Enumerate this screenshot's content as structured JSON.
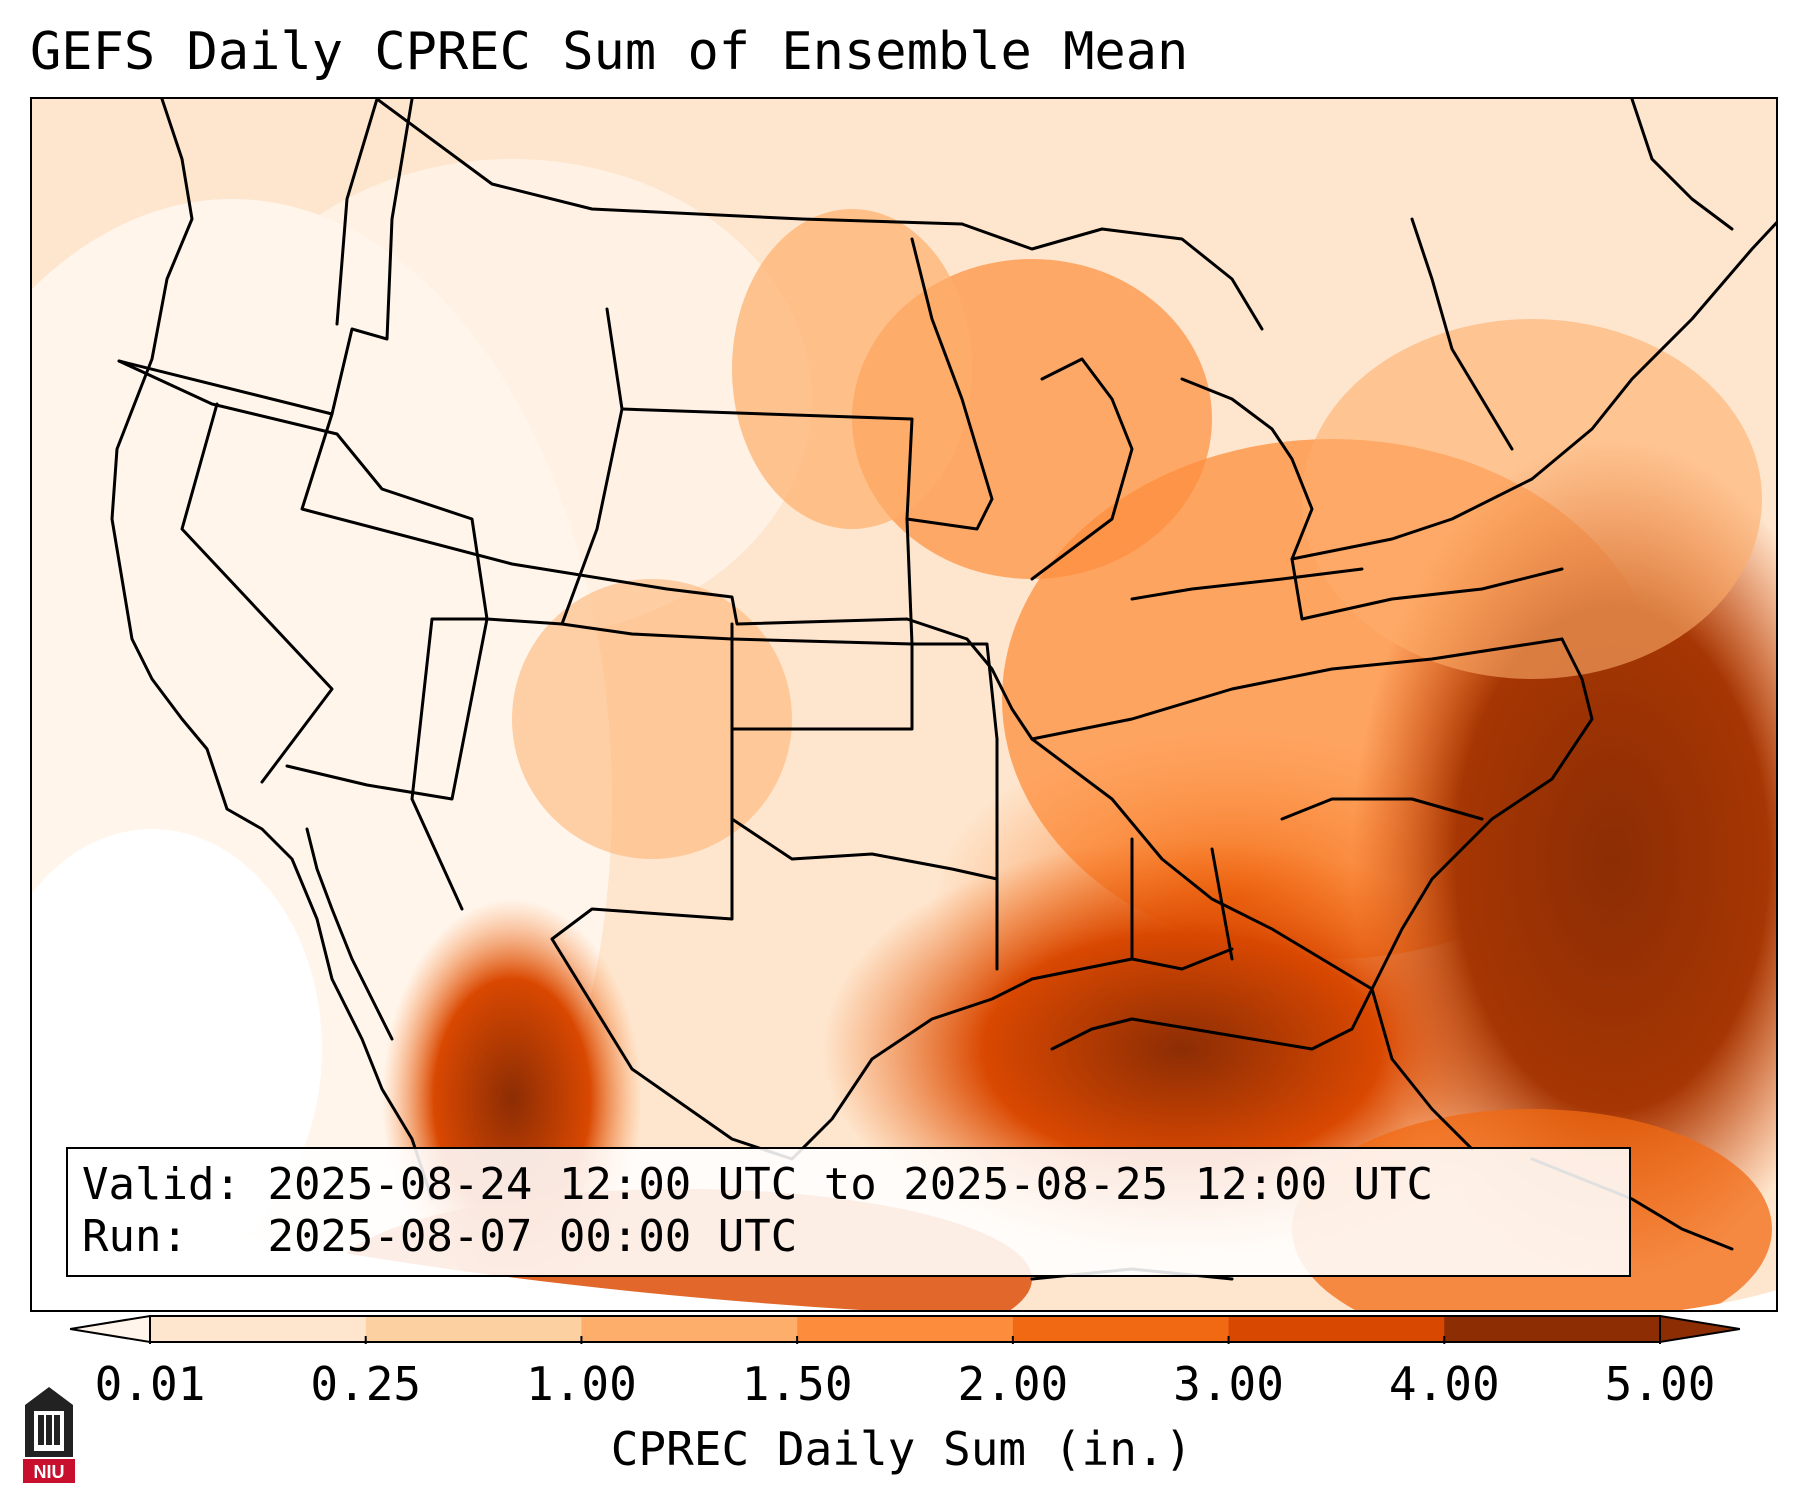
{
  "title": "GEFS Daily CPREC Sum of Ensemble Mean",
  "info_box": {
    "valid_label": "Valid:",
    "valid_value": "2025-08-24 12:00 UTC to 2025-08-25 12:00 UTC",
    "run_label": "Run:",
    "run_value": "2025-08-07 00:00 UTC"
  },
  "colorbar": {
    "label": "CPREC Daily Sum (in.)",
    "ticks": [
      "0.01",
      "0.25",
      "1.00",
      "1.50",
      "2.00",
      "3.00",
      "4.00",
      "5.00"
    ],
    "colors": [
      "#fff5eb",
      "#fee6ce",
      "#fdd0a2",
      "#fdae6b",
      "#fd8d3c",
      "#f16913",
      "#d94801",
      "#8c2d04"
    ],
    "extend": "both"
  },
  "logo": {
    "text": "NIU",
    "icon": "niu-logo-icon"
  }
}
